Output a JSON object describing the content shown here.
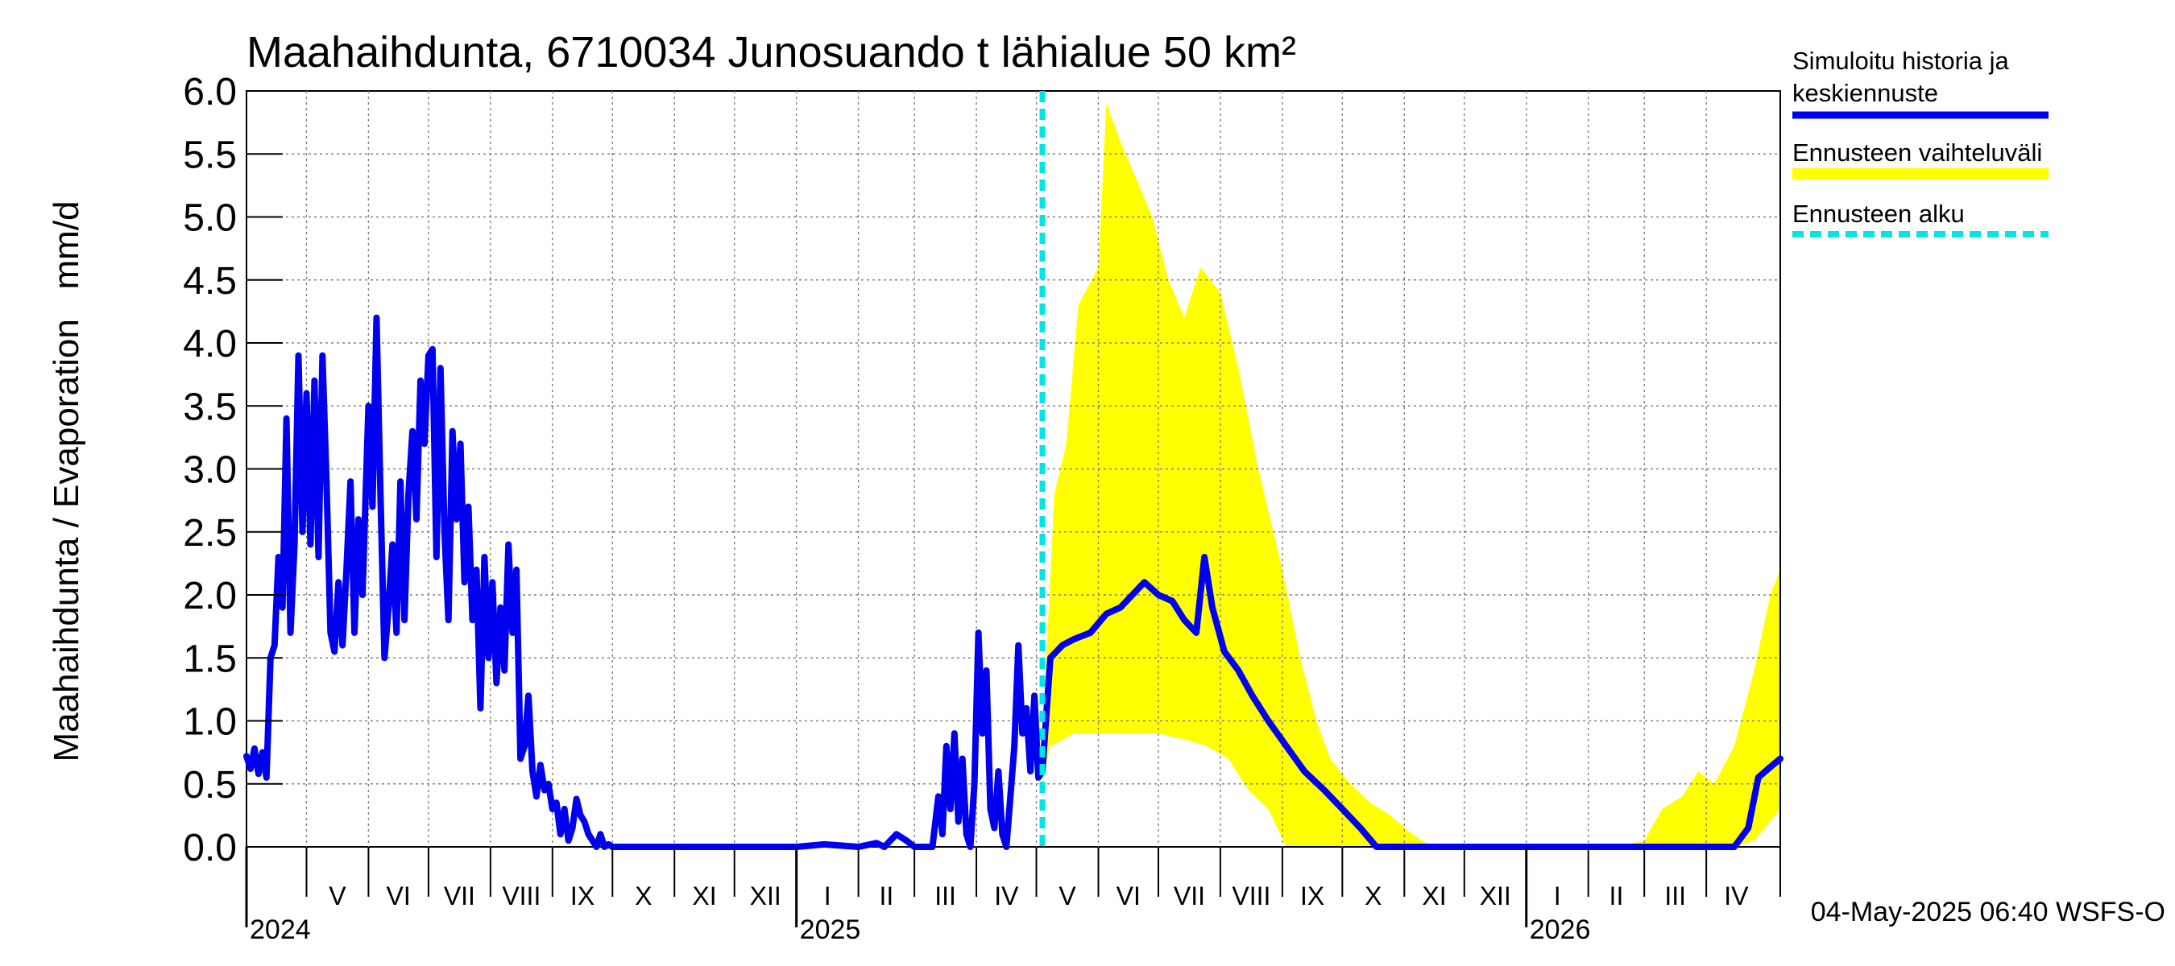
{
  "chart_data": {
    "type": "line",
    "title": "Maahaihdunta, 6710034 Junosuando t lähialue 50 km²",
    "ylabel": "Maahaihdunta / Evaporation   mm/d",
    "ylim": [
      0,
      6
    ],
    "yticks": [
      "0.0",
      "0.5",
      "1.0",
      "1.5",
      "2.0",
      "2.5",
      "3.0",
      "3.5",
      "4.0",
      "4.5",
      "5.0",
      "5.5",
      "6.0"
    ],
    "grid": true,
    "x_start": "2024-04-01",
    "x_end": "2026-05-08",
    "months": [
      {
        "label": "V",
        "start": "2024-05-01",
        "end": "2024-06-01"
      },
      {
        "label": "VI",
        "start": "2024-06-01",
        "end": "2024-07-01"
      },
      {
        "label": "VII",
        "start": "2024-07-01",
        "end": "2024-08-01"
      },
      {
        "label": "VIII",
        "start": "2024-08-01",
        "end": "2024-09-01"
      },
      {
        "label": "IX",
        "start": "2024-09-01",
        "end": "2024-10-01"
      },
      {
        "label": "X",
        "start": "2024-10-01",
        "end": "2024-11-01"
      },
      {
        "label": "XI",
        "start": "2024-11-01",
        "end": "2024-12-01"
      },
      {
        "label": "XII",
        "start": "2024-12-01",
        "end": "2025-01-01"
      },
      {
        "label": "I",
        "start": "2025-01-01",
        "end": "2025-02-01"
      },
      {
        "label": "II",
        "start": "2025-02-01",
        "end": "2025-03-01"
      },
      {
        "label": "III",
        "start": "2025-03-01",
        "end": "2025-04-01"
      },
      {
        "label": "IV",
        "start": "2025-04-01",
        "end": "2025-05-01"
      },
      {
        "label": "V",
        "start": "2025-05-01",
        "end": "2025-06-01"
      },
      {
        "label": "VI",
        "start": "2025-06-01",
        "end": "2025-07-01"
      },
      {
        "label": "VII",
        "start": "2025-07-01",
        "end": "2025-08-01"
      },
      {
        "label": "VIII",
        "start": "2025-08-01",
        "end": "2025-09-01"
      },
      {
        "label": "IX",
        "start": "2025-09-01",
        "end": "2025-10-01"
      },
      {
        "label": "X",
        "start": "2025-10-01",
        "end": "2025-11-01"
      },
      {
        "label": "XI",
        "start": "2025-11-01",
        "end": "2025-12-01"
      },
      {
        "label": "XII",
        "start": "2025-12-01",
        "end": "2026-01-01"
      },
      {
        "label": "I",
        "start": "2026-01-01",
        "end": "2026-02-01"
      },
      {
        "label": "II",
        "start": "2026-02-01",
        "end": "2026-03-01"
      },
      {
        "label": "III",
        "start": "2026-03-01",
        "end": "2026-04-01"
      },
      {
        "label": "IV",
        "start": "2026-04-01",
        "end": "2026-05-01"
      }
    ],
    "years": [
      {
        "label": "2024",
        "date": "2024-04-01"
      },
      {
        "label": "2025",
        "date": "2025-01-01"
      },
      {
        "label": "2026",
        "date": "2026-01-01"
      }
    ],
    "forecast_start": "2025-05-04",
    "legend": {
      "placement": "right",
      "items": [
        {
          "label_lines": [
            "Simuloitu historia ja",
            "keskiennuste"
          ],
          "kind": "line",
          "color": "#0000ee"
        },
        {
          "label_lines": [
            "Ennusteen vaihteluväli"
          ],
          "kind": "band",
          "color": "#ffff00"
        },
        {
          "label_lines": [
            "Ennusteen alku"
          ],
          "kind": "dashed",
          "color": "#00e5e5"
        }
      ]
    },
    "footer": "04-May-2025 06:40 WSFS-O",
    "colors": {
      "history": "#0000ee",
      "band": "#ffff00",
      "forecast_line": "#00e5e5",
      "grid": "#808080",
      "axis": "#000000"
    },
    "series": [
      {
        "name": "Simuloitu historia ja keskiennuste",
        "points": [
          [
            "2024-04-01",
            0.72
          ],
          [
            "2024-04-03",
            0.62
          ],
          [
            "2024-04-05",
            0.78
          ],
          [
            "2024-04-07",
            0.58
          ],
          [
            "2024-04-09",
            0.75
          ],
          [
            "2024-04-11",
            0.55
          ],
          [
            "2024-04-13",
            1.5
          ],
          [
            "2024-04-15",
            1.6
          ],
          [
            "2024-04-17",
            2.3
          ],
          [
            "2024-04-19",
            1.9
          ],
          [
            "2024-04-21",
            3.4
          ],
          [
            "2024-04-23",
            1.7
          ],
          [
            "2024-04-25",
            2.4
          ],
          [
            "2024-04-27",
            3.9
          ],
          [
            "2024-04-29",
            2.5
          ],
          [
            "2024-05-01",
            3.6
          ],
          [
            "2024-05-03",
            2.4
          ],
          [
            "2024-05-05",
            3.7
          ],
          [
            "2024-05-07",
            2.3
          ],
          [
            "2024-05-09",
            3.9
          ],
          [
            "2024-05-11",
            2.9
          ],
          [
            "2024-05-13",
            1.7
          ],
          [
            "2024-05-15",
            1.55
          ],
          [
            "2024-05-17",
            2.1
          ],
          [
            "2024-05-19",
            1.6
          ],
          [
            "2024-05-21",
            2.2
          ],
          [
            "2024-05-23",
            2.9
          ],
          [
            "2024-05-25",
            1.7
          ],
          [
            "2024-05-27",
            2.6
          ],
          [
            "2024-05-29",
            2.0
          ],
          [
            "2024-06-01",
            3.5
          ],
          [
            "2024-06-03",
            2.7
          ],
          [
            "2024-06-05",
            4.2
          ],
          [
            "2024-06-07",
            2.8
          ],
          [
            "2024-06-09",
            1.5
          ],
          [
            "2024-06-11",
            1.9
          ],
          [
            "2024-06-13",
            2.4
          ],
          [
            "2024-06-15",
            1.7
          ],
          [
            "2024-06-17",
            2.9
          ],
          [
            "2024-06-19",
            1.8
          ],
          [
            "2024-06-21",
            2.8
          ],
          [
            "2024-06-23",
            3.3
          ],
          [
            "2024-06-25",
            2.6
          ],
          [
            "2024-06-27",
            3.7
          ],
          [
            "2024-06-29",
            3.2
          ],
          [
            "2024-07-01",
            3.9
          ],
          [
            "2024-07-03",
            3.95
          ],
          [
            "2024-07-05",
            2.3
          ],
          [
            "2024-07-07",
            3.8
          ],
          [
            "2024-07-09",
            2.5
          ],
          [
            "2024-07-11",
            1.8
          ],
          [
            "2024-07-13",
            3.3
          ],
          [
            "2024-07-15",
            2.6
          ],
          [
            "2024-07-17",
            3.2
          ],
          [
            "2024-07-19",
            2.1
          ],
          [
            "2024-07-21",
            2.7
          ],
          [
            "2024-07-23",
            1.8
          ],
          [
            "2024-07-25",
            2.2
          ],
          [
            "2024-07-27",
            1.1
          ],
          [
            "2024-07-29",
            2.3
          ],
          [
            "2024-07-31",
            1.5
          ],
          [
            "2024-08-02",
            2.1
          ],
          [
            "2024-08-04",
            1.3
          ],
          [
            "2024-08-06",
            1.9
          ],
          [
            "2024-08-08",
            1.4
          ],
          [
            "2024-08-10",
            2.4
          ],
          [
            "2024-08-12",
            1.7
          ],
          [
            "2024-08-14",
            2.2
          ],
          [
            "2024-08-16",
            0.7
          ],
          [
            "2024-08-18",
            0.8
          ],
          [
            "2024-08-20",
            1.2
          ],
          [
            "2024-08-22",
            0.6
          ],
          [
            "2024-08-24",
            0.4
          ],
          [
            "2024-08-26",
            0.65
          ],
          [
            "2024-08-28",
            0.45
          ],
          [
            "2024-08-30",
            0.5
          ],
          [
            "2024-09-01",
            0.3
          ],
          [
            "2024-09-03",
            0.35
          ],
          [
            "2024-09-05",
            0.1
          ],
          [
            "2024-09-07",
            0.3
          ],
          [
            "2024-09-09",
            0.05
          ],
          [
            "2024-09-11",
            0.15
          ],
          [
            "2024-09-13",
            0.38
          ],
          [
            "2024-09-15",
            0.25
          ],
          [
            "2024-09-17",
            0.2
          ],
          [
            "2024-09-19",
            0.1
          ],
          [
            "2024-09-21",
            0.05
          ],
          [
            "2024-09-23",
            0.0
          ],
          [
            "2024-09-25",
            0.1
          ],
          [
            "2024-09-27",
            0.0
          ],
          [
            "2024-09-29",
            0.02
          ],
          [
            "2024-10-01",
            0.0
          ],
          [
            "2024-10-15",
            0.0
          ],
          [
            "2024-11-01",
            0.0
          ],
          [
            "2024-12-01",
            0.0
          ],
          [
            "2024-12-15",
            0.0
          ],
          [
            "2025-01-01",
            0.0
          ],
          [
            "2025-01-15",
            0.02
          ],
          [
            "2025-02-01",
            0.0
          ],
          [
            "2025-02-10",
            0.03
          ],
          [
            "2025-02-14",
            0.0
          ],
          [
            "2025-02-20",
            0.1
          ],
          [
            "2025-02-25",
            0.05
          ],
          [
            "2025-03-01",
            0.0
          ],
          [
            "2025-03-10",
            0.0
          ],
          [
            "2025-03-13",
            0.4
          ],
          [
            "2025-03-15",
            0.1
          ],
          [
            "2025-03-17",
            0.8
          ],
          [
            "2025-03-19",
            0.3
          ],
          [
            "2025-03-21",
            0.9
          ],
          [
            "2025-03-23",
            0.2
          ],
          [
            "2025-03-25",
            0.7
          ],
          [
            "2025-03-27",
            0.1
          ],
          [
            "2025-03-29",
            0.0
          ],
          [
            "2025-03-31",
            0.5
          ],
          [
            "2025-04-02",
            1.7
          ],
          [
            "2025-04-04",
            0.9
          ],
          [
            "2025-04-06",
            1.4
          ],
          [
            "2025-04-08",
            0.3
          ],
          [
            "2025-04-10",
            0.15
          ],
          [
            "2025-04-12",
            0.6
          ],
          [
            "2025-04-14",
            0.1
          ],
          [
            "2025-04-16",
            0.0
          ],
          [
            "2025-04-18",
            0.4
          ],
          [
            "2025-04-20",
            0.8
          ],
          [
            "2025-04-22",
            1.6
          ],
          [
            "2025-04-24",
            0.9
          ],
          [
            "2025-04-26",
            1.1
          ],
          [
            "2025-04-28",
            0.6
          ],
          [
            "2025-04-30",
            1.2
          ],
          [
            "2025-05-02",
            0.55
          ],
          [
            "2025-05-04",
            0.6
          ]
        ]
      },
      {
        "name": "Keskiennuste",
        "points": [
          [
            "2025-05-04",
            0.6
          ],
          [
            "2025-05-08",
            1.5
          ],
          [
            "2025-05-14",
            1.6
          ],
          [
            "2025-05-20",
            1.65
          ],
          [
            "2025-05-28",
            1.7
          ],
          [
            "2025-06-05",
            1.85
          ],
          [
            "2025-06-12",
            1.9
          ],
          [
            "2025-06-18",
            2.0
          ],
          [
            "2025-06-24",
            2.1
          ],
          [
            "2025-07-01",
            2.0
          ],
          [
            "2025-07-08",
            1.95
          ],
          [
            "2025-07-14",
            1.8
          ],
          [
            "2025-07-20",
            1.7
          ],
          [
            "2025-07-24",
            2.3
          ],
          [
            "2025-07-28",
            1.9
          ],
          [
            "2025-08-03",
            1.55
          ],
          [
            "2025-08-10",
            1.4
          ],
          [
            "2025-08-17",
            1.2
          ],
          [
            "2025-08-25",
            1.0
          ],
          [
            "2025-09-03",
            0.8
          ],
          [
            "2025-09-12",
            0.6
          ],
          [
            "2025-09-22",
            0.45
          ],
          [
            "2025-10-01",
            0.3
          ],
          [
            "2025-10-10",
            0.15
          ],
          [
            "2025-10-18",
            0.0
          ],
          [
            "2025-11-01",
            0.0
          ],
          [
            "2025-12-01",
            0.0
          ],
          [
            "2026-01-01",
            0.0
          ],
          [
            "2026-02-01",
            0.0
          ],
          [
            "2026-03-01",
            0.0
          ],
          [
            "2026-04-01",
            0.0
          ],
          [
            "2026-04-15",
            0.0
          ],
          [
            "2026-04-22",
            0.15
          ],
          [
            "2026-04-27",
            0.55
          ],
          [
            "2026-05-02",
            0.62
          ],
          [
            "2026-05-08",
            0.7
          ]
        ]
      },
      {
        "name": "Ennusteen vaihteluväli",
        "upper": [
          [
            "2025-05-04",
            0.5
          ],
          [
            "2025-05-06",
            1.5
          ],
          [
            "2025-05-10",
            2.8
          ],
          [
            "2025-05-16",
            3.2
          ],
          [
            "2025-05-22",
            4.3
          ],
          [
            "2025-06-01",
            4.6
          ],
          [
            "2025-06-05",
            5.9
          ],
          [
            "2025-06-12",
            5.6
          ],
          [
            "2025-06-20",
            5.3
          ],
          [
            "2025-06-28",
            5.0
          ],
          [
            "2025-07-06",
            4.5
          ],
          [
            "2025-07-14",
            4.2
          ],
          [
            "2025-07-22",
            4.6
          ],
          [
            "2025-08-01",
            4.4
          ],
          [
            "2025-08-10",
            3.8
          ],
          [
            "2025-08-20",
            3.0
          ],
          [
            "2025-09-01",
            2.2
          ],
          [
            "2025-09-10",
            1.5
          ],
          [
            "2025-09-18",
            1.0
          ],
          [
            "2025-09-25",
            0.7
          ],
          [
            "2025-10-05",
            0.5
          ],
          [
            "2025-10-15",
            0.35
          ],
          [
            "2025-10-25",
            0.25
          ],
          [
            "2025-11-05",
            0.1
          ],
          [
            "2025-11-15",
            0.0
          ],
          [
            "2026-02-15",
            0.0
          ],
          [
            "2026-03-01",
            0.05
          ],
          [
            "2026-03-10",
            0.3
          ],
          [
            "2026-03-20",
            0.4
          ],
          [
            "2026-03-28",
            0.6
          ],
          [
            "2026-04-05",
            0.5
          ],
          [
            "2026-04-15",
            0.8
          ],
          [
            "2026-04-25",
            1.4
          ],
          [
            "2026-05-03",
            2.0
          ],
          [
            "2026-05-08",
            2.2
          ]
        ],
        "lower": [
          [
            "2025-05-04",
            0.5
          ],
          [
            "2025-05-08",
            0.8
          ],
          [
            "2025-05-20",
            0.9
          ],
          [
            "2025-06-01",
            0.9
          ],
          [
            "2025-06-15",
            0.9
          ],
          [
            "2025-07-01",
            0.9
          ],
          [
            "2025-07-15",
            0.85
          ],
          [
            "2025-07-25",
            0.8
          ],
          [
            "2025-08-05",
            0.7
          ],
          [
            "2025-08-15",
            0.45
          ],
          [
            "2025-08-25",
            0.3
          ],
          [
            "2025-09-03",
            0.0
          ],
          [
            "2026-04-15",
            0.0
          ],
          [
            "2026-04-25",
            0.05
          ],
          [
            "2026-05-08",
            0.3
          ]
        ]
      }
    ]
  }
}
